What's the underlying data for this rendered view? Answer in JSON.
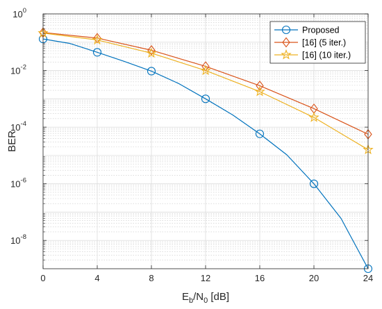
{
  "chart_data": {
    "type": "line",
    "xlabel": {
      "main": "E",
      "sub1": "b",
      "mid": "/N",
      "sub2": "0",
      "tail": " [dB]"
    },
    "ylabel": "BER",
    "x_ticks": [
      "0",
      "4",
      "8",
      "12",
      "16",
      "20",
      "24"
    ],
    "y_ticks": [
      {
        "base": "10",
        "exp": "0"
      },
      {
        "base": "10",
        "exp": "-2"
      },
      {
        "base": "10",
        "exp": "-4"
      },
      {
        "base": "10",
        "exp": "-6"
      },
      {
        "base": "10",
        "exp": "-8"
      }
    ],
    "xlim": [
      0,
      24
    ],
    "ylim": [
      1e-09,
      1
    ],
    "yscale": "log",
    "grid": true,
    "minor_grid": true,
    "legend_position": "top-right",
    "series": [
      {
        "name": "Proposed",
        "color": "#0072BD",
        "marker": "circle",
        "x": [
          0,
          2,
          4,
          6,
          8,
          10,
          12,
          14,
          16,
          18,
          20,
          22,
          24
        ],
        "y": [
          0.13,
          0.09,
          0.044,
          0.021,
          0.0095,
          0.0035,
          0.001,
          0.00027,
          5.8e-05,
          1.05e-05,
          1e-06,
          6e-08,
          1e-09
        ],
        "marker_indices": [
          0,
          2,
          4,
          6,
          8,
          10,
          12
        ]
      },
      {
        "name": "[16] (5 iter.)",
        "color": "#D95319",
        "marker": "diamond",
        "x": [
          0,
          4,
          8,
          12,
          16,
          20,
          24
        ],
        "y": [
          0.22,
          0.14,
          0.052,
          0.014,
          0.0029,
          0.00045,
          5.6e-05
        ],
        "marker_indices": [
          0,
          1,
          2,
          3,
          4,
          5,
          6
        ]
      },
      {
        "name": "[16] (10 iter.)",
        "color": "#EDB120",
        "marker": "star",
        "x": [
          0,
          4,
          8,
          12,
          16,
          20,
          24
        ],
        "y": [
          0.21,
          0.12,
          0.041,
          0.01,
          0.0018,
          0.00022,
          1.6e-05
        ],
        "marker_indices": [
          0,
          1,
          2,
          3,
          4,
          5,
          6
        ]
      }
    ]
  }
}
